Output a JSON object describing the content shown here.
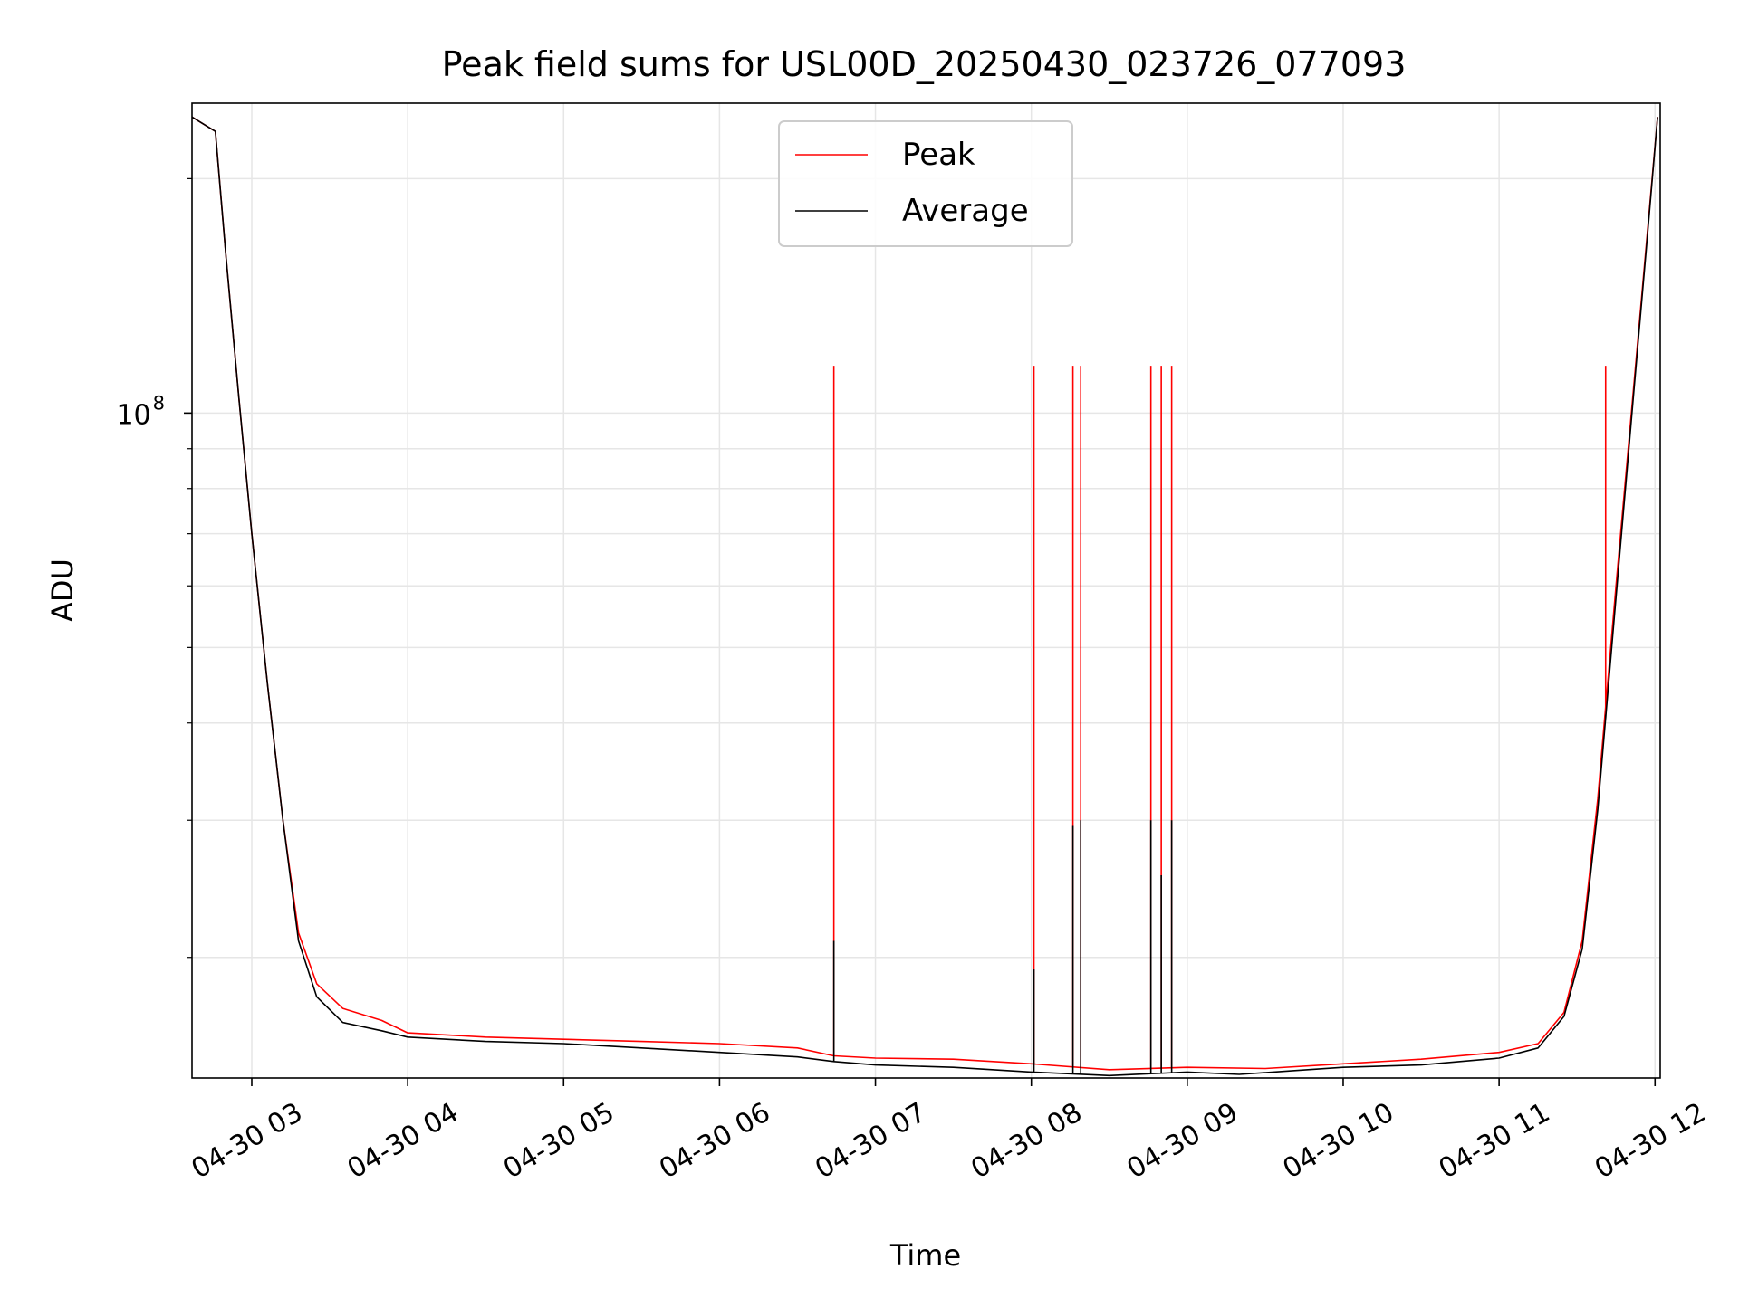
{
  "chart_data": {
    "type": "line",
    "title": "Peak field sums for USL00D_20250430_023726_077093",
    "xlabel": "Time",
    "ylabel": "ADU",
    "yscale": "log",
    "ylim": [
      14000000,
      250000000
    ],
    "xlim": [
      "2025-04-30T02:37",
      "2025-04-30T12:02"
    ],
    "grid": true,
    "legend_position": "top-center",
    "x_ticks": [
      {
        "t": "2025-04-30T03:00",
        "label": "04-30 03"
      },
      {
        "t": "2025-04-30T04:00",
        "label": "04-30 04"
      },
      {
        "t": "2025-04-30T05:00",
        "label": "04-30 05"
      },
      {
        "t": "2025-04-30T06:00",
        "label": "04-30 06"
      },
      {
        "t": "2025-04-30T07:00",
        "label": "04-30 07"
      },
      {
        "t": "2025-04-30T08:00",
        "label": "04-30 08"
      },
      {
        "t": "2025-04-30T09:00",
        "label": "04-30 09"
      },
      {
        "t": "2025-04-30T10:00",
        "label": "04-30 10"
      },
      {
        "t": "2025-04-30T11:00",
        "label": "04-30 11"
      },
      {
        "t": "2025-04-30T12:00",
        "label": "04-30 12"
      }
    ],
    "y_ticks": [
      {
        "value": 100000000,
        "base": "10",
        "exp": "8"
      }
    ],
    "series": [
      {
        "name": "Peak",
        "color": "#ff0000",
        "points": [
          [
            "2025-04-30T02:37",
            240000000
          ],
          [
            "2025-04-30T02:46",
            230000000
          ],
          [
            "2025-04-30T02:50",
            160000000
          ],
          [
            "2025-04-30T02:55",
            105000000
          ],
          [
            "2025-04-30T03:00",
            70000000
          ],
          [
            "2025-04-30T03:06",
            45000000
          ],
          [
            "2025-04-30T03:12",
            30000000
          ],
          [
            "2025-04-30T03:18",
            21500000
          ],
          [
            "2025-04-30T03:25",
            18500000
          ],
          [
            "2025-04-30T03:35",
            17200000
          ],
          [
            "2025-04-30T03:50",
            16600000
          ],
          [
            "2025-04-30T04:00",
            16000000
          ],
          [
            "2025-04-30T04:30",
            15800000
          ],
          [
            "2025-04-30T05:00",
            15700000
          ],
          [
            "2025-04-30T05:30",
            15600000
          ],
          [
            "2025-04-30T06:00",
            15500000
          ],
          [
            "2025-04-30T06:30",
            15300000
          ],
          [
            "2025-04-30T06:44",
            14950000
          ],
          [
            "2025-04-30T07:00",
            14850000
          ],
          [
            "2025-04-30T07:30",
            14800000
          ],
          [
            "2025-04-30T08:00",
            14600000
          ],
          [
            "2025-04-30T08:30",
            14350000
          ],
          [
            "2025-04-30T09:00",
            14450000
          ],
          [
            "2025-04-30T09:30",
            14400000
          ],
          [
            "2025-04-30T10:00",
            14600000
          ],
          [
            "2025-04-30T10:30",
            14800000
          ],
          [
            "2025-04-30T11:00",
            15100000
          ],
          [
            "2025-04-30T11:15",
            15500000
          ],
          [
            "2025-04-30T11:25",
            17000000
          ],
          [
            "2025-04-30T11:32",
            21000000
          ],
          [
            "2025-04-30T11:38",
            32000000
          ],
          [
            "2025-04-30T11:45",
            60000000
          ],
          [
            "2025-04-30T11:52",
            110000000
          ],
          [
            "2025-04-30T11:57",
            170000000
          ],
          [
            "2025-04-30T12:01",
            240000000
          ]
        ],
        "spikes": [
          [
            "2025-04-30T06:44",
            115000000
          ],
          [
            "2025-04-30T08:01",
            115000000
          ],
          [
            "2025-04-30T08:16",
            115000000
          ],
          [
            "2025-04-30T08:19",
            115000000
          ],
          [
            "2025-04-30T08:46",
            115000000
          ],
          [
            "2025-04-30T08:50",
            115000000
          ],
          [
            "2025-04-30T08:54",
            115000000
          ],
          [
            "2025-04-30T11:41",
            115000000
          ]
        ]
      },
      {
        "name": "Average",
        "color": "#000000",
        "points": [
          [
            "2025-04-30T02:37",
            240000000
          ],
          [
            "2025-04-30T02:46",
            230000000
          ],
          [
            "2025-04-30T02:50",
            160000000
          ],
          [
            "2025-04-30T02:55",
            105000000
          ],
          [
            "2025-04-30T03:00",
            70000000
          ],
          [
            "2025-04-30T03:06",
            45000000
          ],
          [
            "2025-04-30T03:12",
            30000000
          ],
          [
            "2025-04-30T03:18",
            21000000
          ],
          [
            "2025-04-30T03:25",
            17800000
          ],
          [
            "2025-04-30T03:35",
            16500000
          ],
          [
            "2025-04-30T03:50",
            16100000
          ],
          [
            "2025-04-30T04:00",
            15800000
          ],
          [
            "2025-04-30T04:30",
            15600000
          ],
          [
            "2025-04-30T05:00",
            15500000
          ],
          [
            "2025-04-30T05:30",
            15300000
          ],
          [
            "2025-04-30T06:00",
            15100000
          ],
          [
            "2025-04-30T06:30",
            14900000
          ],
          [
            "2025-04-30T06:44",
            14700000
          ],
          [
            "2025-04-30T07:00",
            14550000
          ],
          [
            "2025-04-30T07:30",
            14450000
          ],
          [
            "2025-04-30T08:00",
            14250000
          ],
          [
            "2025-04-30T08:30",
            14100000
          ],
          [
            "2025-04-30T09:00",
            14250000
          ],
          [
            "2025-04-30T09:20",
            14150000
          ],
          [
            "2025-04-30T09:40",
            14300000
          ],
          [
            "2025-04-30T10:00",
            14450000
          ],
          [
            "2025-04-30T10:30",
            14550000
          ],
          [
            "2025-04-30T11:00",
            14850000
          ],
          [
            "2025-04-30T11:15",
            15300000
          ],
          [
            "2025-04-30T11:25",
            16800000
          ],
          [
            "2025-04-30T11:32",
            20500000
          ],
          [
            "2025-04-30T11:38",
            31000000
          ],
          [
            "2025-04-30T11:45",
            58000000
          ],
          [
            "2025-04-30T11:52",
            108000000
          ],
          [
            "2025-04-30T11:57",
            168000000
          ],
          [
            "2025-04-30T12:01",
            240000000
          ]
        ],
        "spikes": [
          [
            "2025-04-30T06:44",
            21000000
          ],
          [
            "2025-04-30T08:01",
            19300000
          ],
          [
            "2025-04-30T08:16",
            29500000
          ],
          [
            "2025-04-30T08:19",
            30000000
          ],
          [
            "2025-04-30T08:46",
            30000000
          ],
          [
            "2025-04-30T08:50",
            25500000
          ],
          [
            "2025-04-30T08:54",
            30000000
          ],
          [
            "2025-04-30T11:41",
            41000000
          ]
        ]
      }
    ]
  }
}
